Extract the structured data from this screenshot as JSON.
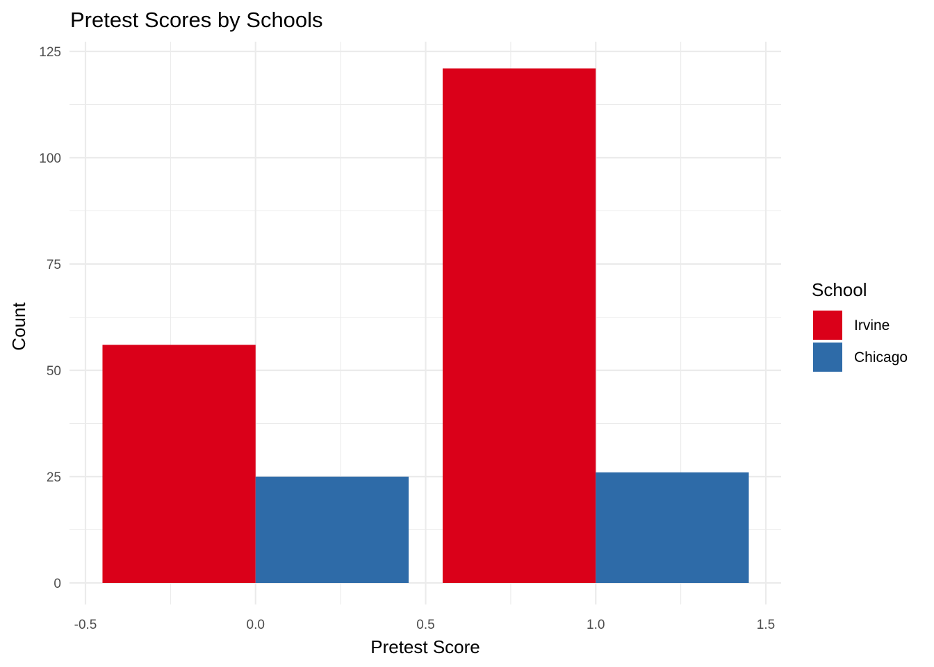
{
  "chart_data": {
    "type": "bar",
    "title": "Pretest Scores by Schools",
    "xlabel": "Pretest Score",
    "ylabel": "Count",
    "xlim": [
      -0.5,
      1.5
    ],
    "ylim": [
      0,
      125
    ],
    "x_ticks": [
      -0.5,
      0.0,
      0.5,
      1.0,
      1.5
    ],
    "x_tick_labels": [
      "-0.5",
      "0.0",
      "0.5",
      "1.0",
      "1.5"
    ],
    "y_ticks": [
      0,
      25,
      50,
      75,
      100,
      125
    ],
    "y_tick_labels": [
      "0",
      "25",
      "50",
      "75",
      "100",
      "125"
    ],
    "categories": [
      "0",
      "1"
    ],
    "category_positions": [
      0,
      1
    ],
    "bar_group_width": 0.9,
    "grid": true,
    "legend": {
      "title": "School",
      "position": "right"
    },
    "series": [
      {
        "name": "Irvine",
        "color": "#da0019",
        "values": [
          56,
          121
        ]
      },
      {
        "name": "Chicago",
        "color": "#2e6ba8",
        "values": [
          25,
          26
        ]
      }
    ]
  }
}
